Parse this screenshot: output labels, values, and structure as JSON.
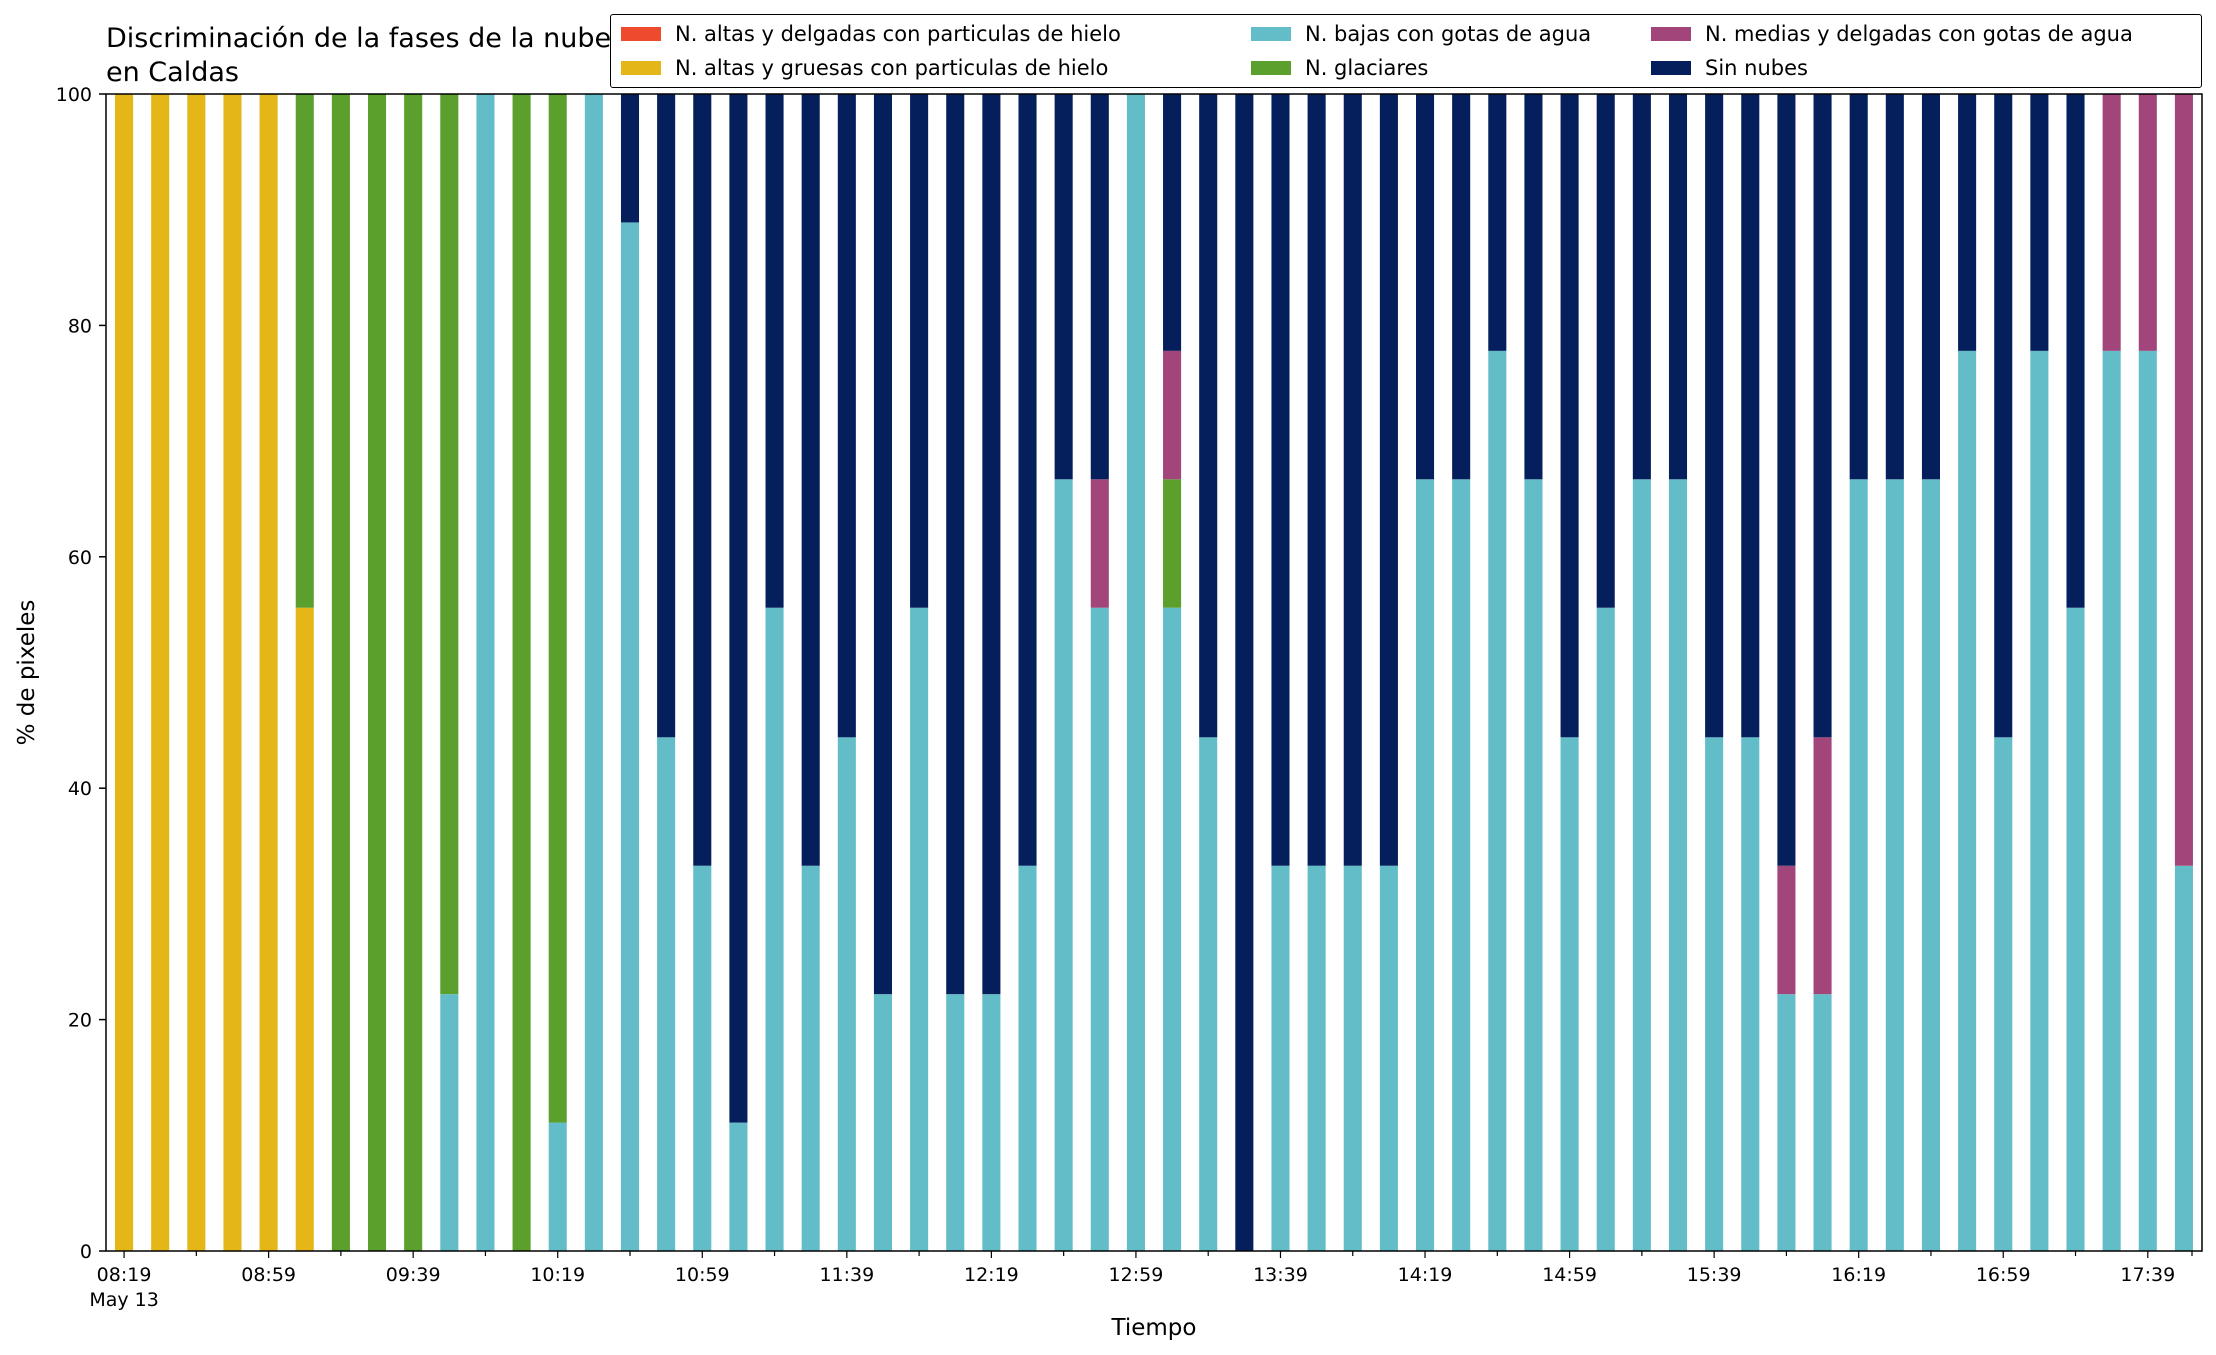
{
  "chart_data": {
    "type": "bar",
    "stacked": true,
    "title": "Discriminación de la fases de la nube en Caldas",
    "xlabel": "Tiempo",
    "ylabel": "% de pixeles",
    "ylim": [
      0,
      100
    ],
    "yticks": [
      "0",
      "20",
      "40",
      "60",
      "80",
      "100"
    ],
    "xtick_labels": [
      "08:19",
      "08:59",
      "09:39",
      "10:19",
      "10:59",
      "11:39",
      "12:19",
      "12:59",
      "13:39",
      "14:19",
      "14:59",
      "15:39",
      "16:19",
      "16:59",
      "17:39"
    ],
    "xtick_date": "May 13",
    "bar_count": 58,
    "legend_position": "top-right",
    "grid": false,
    "series": [
      {
        "name": "N. altas y delgadas con particulas de hielo",
        "color": "#ee4a2d",
        "values": [
          0,
          0,
          0,
          0,
          0,
          0,
          0,
          0,
          0,
          0,
          0,
          0,
          0,
          0,
          0,
          0,
          0,
          0,
          0,
          0,
          0,
          0,
          0,
          0,
          0,
          0,
          0,
          0,
          0,
          0,
          0,
          0,
          0,
          0,
          0,
          0,
          0,
          0,
          0,
          0,
          0,
          0,
          0,
          0,
          0,
          0,
          0,
          0,
          0,
          0,
          0,
          0,
          0,
          0,
          0,
          0,
          0,
          0
        ]
      },
      {
        "name": "N. altas y gruesas con particulas de hielo",
        "color": "#e4b617",
        "values": [
          100,
          100,
          100,
          100,
          100,
          55.6,
          0,
          0,
          0,
          0,
          0,
          0,
          0,
          0,
          0,
          0,
          0,
          0,
          0,
          0,
          0,
          0,
          0,
          0,
          0,
          0,
          0,
          0,
          0,
          0,
          0,
          0,
          0,
          0,
          0,
          0,
          0,
          0,
          0,
          0,
          0,
          0,
          0,
          0,
          0,
          0,
          0,
          0,
          0,
          0,
          0,
          0,
          0,
          0,
          0,
          0,
          0,
          0
        ]
      },
      {
        "name": "N. bajas con gotas de agua",
        "color": "#63bdc8",
        "values": [
          0,
          0,
          0,
          0,
          0,
          0,
          0,
          0,
          0,
          22.2,
          100,
          0,
          11.1,
          100,
          88.9,
          44.4,
          33.3,
          11.1,
          55.6,
          33.3,
          44.4,
          22.2,
          55.6,
          22.2,
          22.2,
          33.3,
          66.7,
          55.6,
          100,
          55.6,
          44.4,
          0,
          33.3,
          33.3,
          33.3,
          33.3,
          66.7,
          66.7,
          77.8,
          66.7,
          44.4,
          55.6,
          66.7,
          66.7,
          44.4,
          44.4,
          22.2,
          22.2,
          66.7,
          66.7,
          66.7,
          77.8,
          44.4,
          77.8,
          55.6,
          77.8,
          77.8,
          33.3
        ]
      },
      {
        "name": "N. glaciares",
        "color": "#5b9f2c",
        "values": [
          0,
          0,
          0,
          0,
          0,
          44.4,
          100,
          100,
          100,
          77.8,
          0,
          100,
          88.9,
          0,
          0,
          0,
          0,
          0,
          0,
          0,
          0,
          0,
          0,
          0,
          0,
          0,
          0,
          0,
          0,
          11.1,
          0,
          0,
          0,
          0,
          0,
          0,
          0,
          0,
          0,
          0,
          0,
          0,
          0,
          0,
          0,
          0,
          0,
          0,
          0,
          0,
          0,
          0,
          0,
          0,
          0,
          0,
          0,
          0
        ]
      },
      {
        "name": "N. medias y delgadas con gotas de agua",
        "color": "#a1457a",
        "values": [
          0,
          0,
          0,
          0,
          0,
          0,
          0,
          0,
          0,
          0,
          0,
          0,
          0,
          0,
          0,
          0,
          0,
          0,
          0,
          0,
          0,
          0,
          0,
          0,
          0,
          0,
          0,
          11.1,
          0,
          11.1,
          0,
          0,
          0,
          0,
          0,
          0,
          0,
          0,
          0,
          0,
          0,
          0,
          0,
          0,
          0,
          0,
          11.1,
          22.2,
          0,
          0,
          0,
          0,
          0,
          0,
          0,
          22.2,
          22.2,
          66.7
        ]
      },
      {
        "name": "Sin nubes",
        "color": "#041f5c",
        "values": [
          0,
          0,
          0,
          0,
          0,
          0,
          0,
          0,
          0,
          0,
          0,
          0,
          0,
          0,
          11.1,
          55.6,
          66.7,
          88.9,
          44.4,
          66.7,
          55.6,
          77.8,
          44.4,
          77.8,
          77.8,
          66.7,
          33.3,
          33.3,
          0,
          22.2,
          55.6,
          100,
          66.7,
          66.7,
          66.7,
          66.7,
          33.3,
          33.3,
          22.2,
          33.3,
          55.6,
          44.4,
          33.3,
          33.3,
          55.6,
          55.6,
          66.7,
          55.6,
          33.3,
          33.3,
          33.3,
          22.2,
          55.6,
          22.2,
          44.4,
          0,
          0,
          0
        ]
      }
    ]
  }
}
